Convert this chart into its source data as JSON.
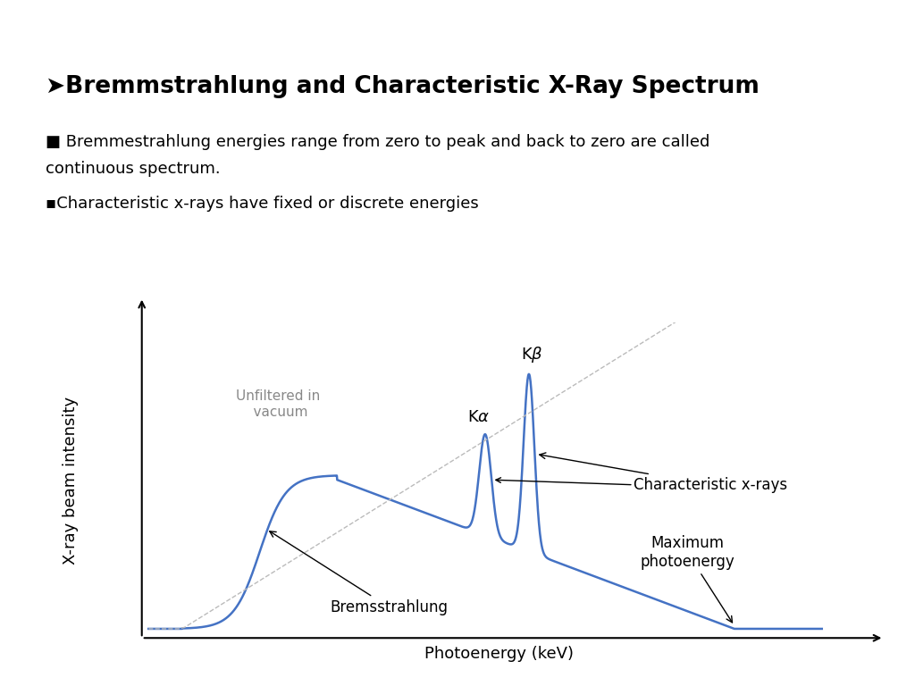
{
  "title": "➤Bremmstrahlung and Characteristic X-Ray Spectrum",
  "bullet1_line1": "■ Bremmestrahlung energies range from zero to peak and back to zero are called",
  "bullet1_line2": "continuous spectrum.",
  "bullet2": "▪Characteristic x-rays have fixed or discrete energies",
  "xlabel": "Photoenergy (keV)",
  "ylabel": "X-ray beam intensity",
  "curve_color": "#4472C4",
  "dashed_color": "#bbbbbb",
  "text_color": "#000000",
  "background_color": "#ffffff",
  "title_fontsize": 19,
  "bullet_fontsize": 13,
  "axis_label_fontsize": 13,
  "annotation_fontsize": 12,
  "unfiltered_fontsize": 11
}
